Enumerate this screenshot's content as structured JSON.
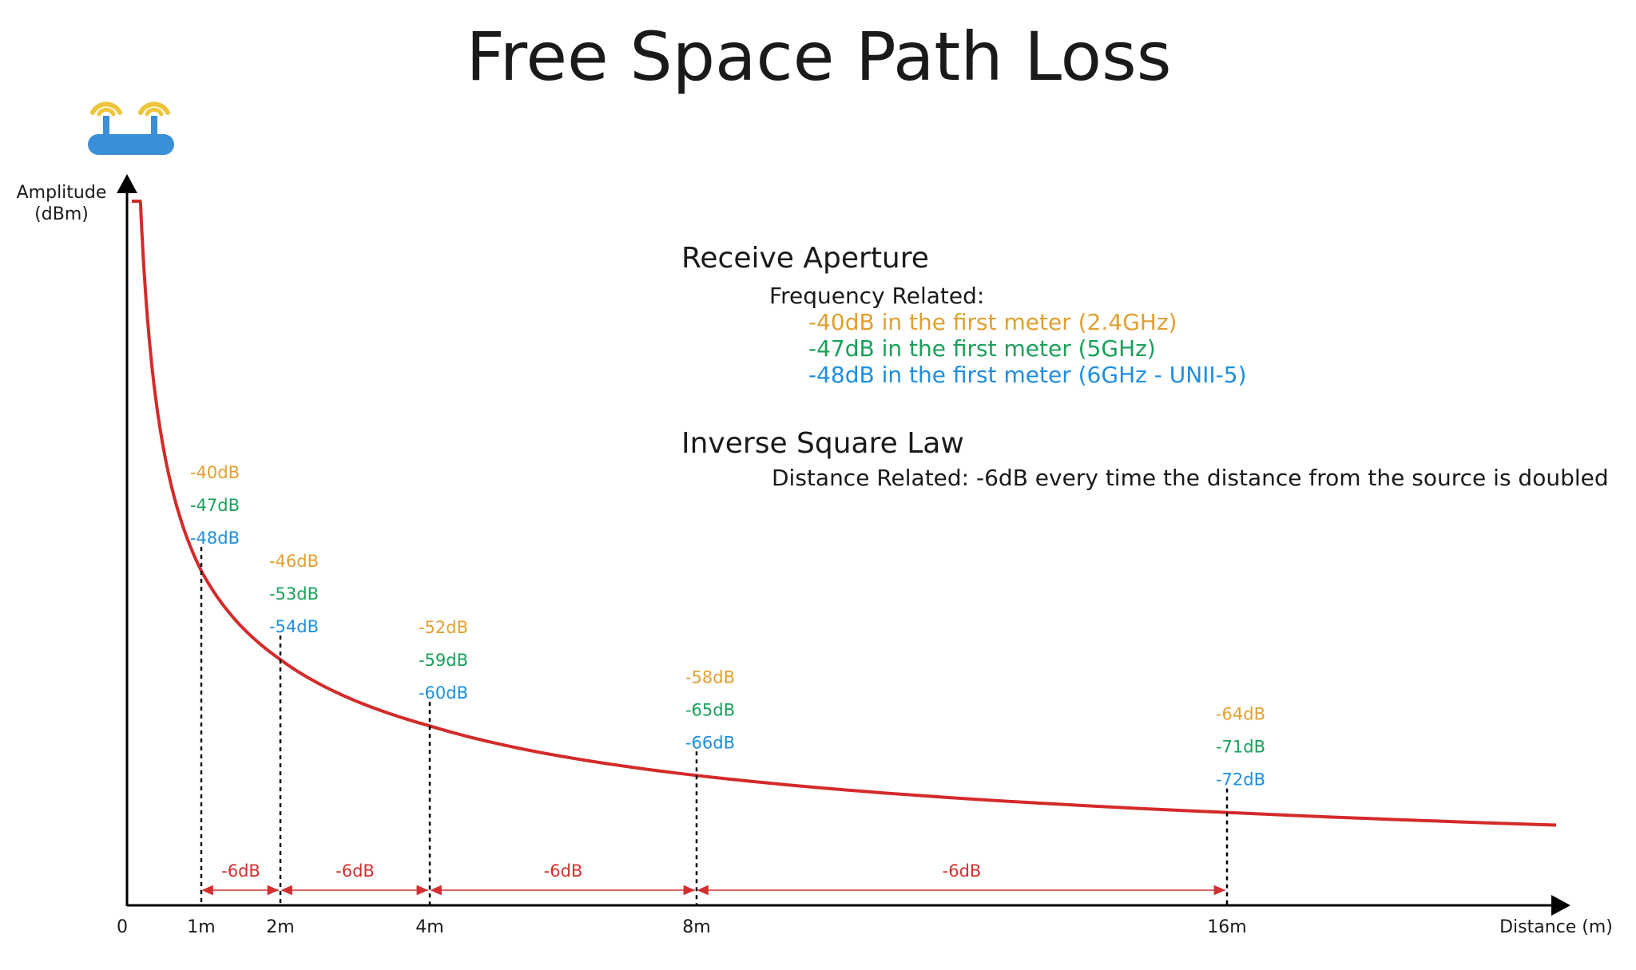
{
  "title": "Free Space Path Loss",
  "colors": {
    "curve": "#d42a2a",
    "band_2_4": "#e0a030",
    "band_5": "#1aa05a",
    "band_6": "#1e8ee0",
    "segment": "#d23030",
    "axis": "#000000",
    "router_body": "#3a8fd6",
    "router_waves": "#f0c43a"
  },
  "icons": {
    "router": "wifi-router-icon"
  },
  "annotations": {
    "receive_aperture": {
      "heading": "Receive Aperture",
      "subheading": "Frequency Related:",
      "lines": [
        "-40dB in the first meter (2.4GHz)",
        "-47dB in the first meter (5GHz)",
        "-48dB in the first meter (6GHz - UNII-5)"
      ]
    },
    "inverse_square": {
      "heading": "Inverse Square Law",
      "subheading": "Distance Related: -6dB every time the distance from the source is doubled"
    }
  },
  "chart_data": {
    "type": "line",
    "title": "Free Space Path Loss",
    "ylabel_line1": "Amplitude",
    "ylabel_line2": "(dBm)",
    "xlabel": "Distance (m)",
    "origin_label": "0",
    "x_ticks": [
      {
        "x": 1,
        "label": "1m"
      },
      {
        "x": 2,
        "label": "2m"
      },
      {
        "x": 4,
        "label": "4m"
      },
      {
        "x": 8,
        "label": "8m"
      },
      {
        "x": 16,
        "label": "16m"
      }
    ],
    "points": [
      {
        "x": 1,
        "labels": [
          "-40dB",
          "-47dB",
          "-48dB"
        ]
      },
      {
        "x": 2,
        "labels": [
          "-46dB",
          "-53dB",
          "-54dB"
        ]
      },
      {
        "x": 4,
        "labels": [
          "-52dB",
          "-59dB",
          "-60dB"
        ]
      },
      {
        "x": 8,
        "labels": [
          "-58dB",
          "-65dB",
          "-66dB"
        ]
      },
      {
        "x": 16,
        "labels": [
          "-64dB",
          "-71dB",
          "-72dB"
        ]
      }
    ],
    "segments": [
      {
        "from": 1,
        "to": 2,
        "label": "-6dB"
      },
      {
        "from": 2,
        "to": 4,
        "label": "-6dB"
      },
      {
        "from": 4,
        "to": 8,
        "label": "-6dB"
      },
      {
        "from": 8,
        "to": 16,
        "label": "-6dB"
      }
    ],
    "grid": false,
    "legend": "none"
  }
}
